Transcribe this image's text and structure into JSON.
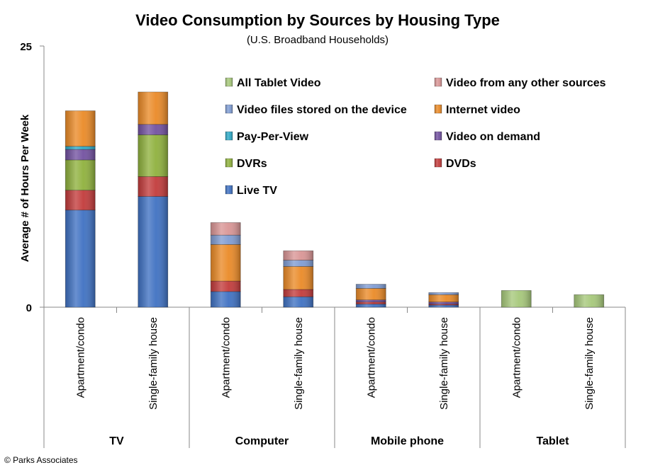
{
  "chart_data": {
    "type": "bar",
    "stacked": true,
    "title": "Video Consumption by Sources by Housing Type",
    "subtitle": "(U.S. Broadband Households)",
    "xlabel": "",
    "ylabel": "Average # of Hours Per Week",
    "ylim": [
      0,
      25
    ],
    "yticks": [
      "0",
      "25"
    ],
    "grid": false,
    "legend_position": "top-right",
    "groups": [
      "TV",
      "Computer",
      "Mobile phone",
      "Tablet"
    ],
    "categories": [
      "Apartment/condo",
      "Single-family house",
      "Apartment/condo",
      "Single-family house",
      "Apartment/condo",
      "Single-family house",
      "Apartment/condo",
      "Single-family house"
    ],
    "category_group": [
      0,
      0,
      1,
      1,
      2,
      2,
      3,
      3
    ],
    "series": [
      {
        "name": "Live TV",
        "color": "#3f71c2",
        "values": [
          9.3,
          10.6,
          1.5,
          1.0,
          0.3,
          0.2,
          0,
          0
        ]
      },
      {
        "name": "DVDs",
        "color": "#c23b3b",
        "values": [
          1.9,
          1.9,
          1.0,
          0.7,
          0.2,
          0.1,
          0,
          0
        ]
      },
      {
        "name": "DVRs",
        "color": "#8fb13d",
        "values": [
          2.9,
          4.0,
          0,
          0,
          0,
          0,
          0,
          0
        ]
      },
      {
        "name": "Video on demand",
        "color": "#7251a0",
        "values": [
          1.0,
          1.0,
          0,
          0,
          0.2,
          0.2,
          0,
          0
        ]
      },
      {
        "name": "Pay-Per-View",
        "color": "#2fa9c6",
        "values": [
          0.3,
          0,
          0,
          0,
          0,
          0,
          0,
          0
        ]
      },
      {
        "name": "Internet video",
        "color": "#ea8a27",
        "values": [
          3.4,
          3.1,
          3.5,
          2.2,
          1.1,
          0.7,
          0,
          0
        ]
      },
      {
        "name": "Video files stored on the device",
        "color": "#7f9cd3",
        "values": [
          0,
          0,
          0.9,
          0.6,
          0.4,
          0.2,
          0,
          0
        ]
      },
      {
        "name": "Video from any other sources",
        "color": "#d99595",
        "values": [
          0,
          0,
          1.2,
          0.9,
          0,
          0,
          0,
          0
        ]
      },
      {
        "name": "All Tablet Video",
        "color": "#a6c87a",
        "values": [
          0,
          0,
          0,
          0,
          0,
          0,
          1.6,
          1.2
        ]
      }
    ],
    "legend_order": [
      "All Tablet Video",
      "Video from any other sources",
      "Video files stored on the device",
      "Internet video",
      "Pay-Per-View",
      "Video on demand",
      "DVRs",
      "DVDs",
      "Live TV"
    ]
  },
  "credit": "© Parks Associates"
}
